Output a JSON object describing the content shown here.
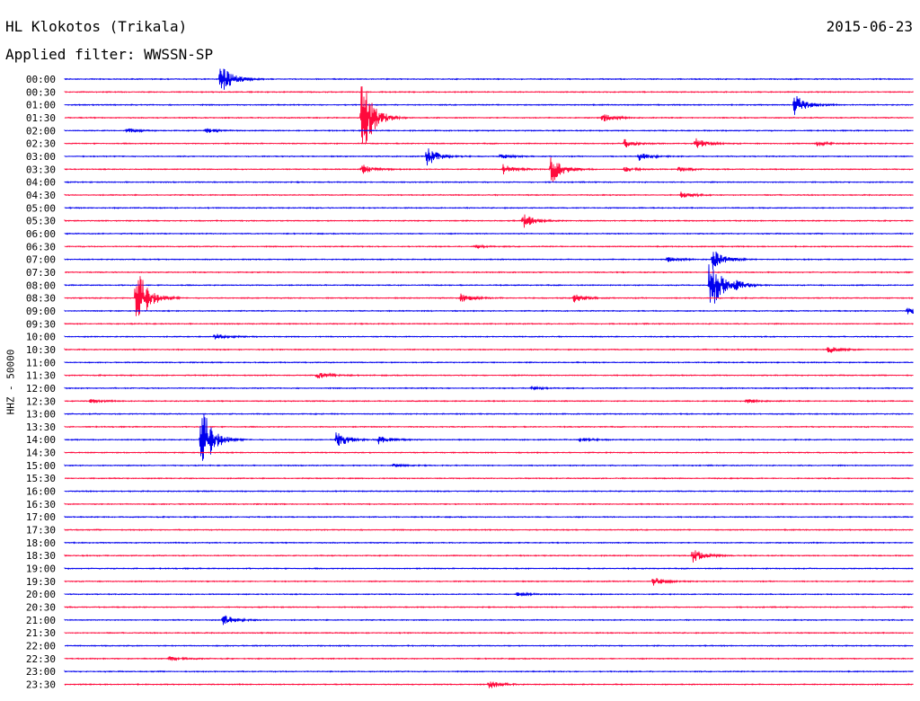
{
  "header": {
    "station": "HL Klokotos (Trikala)",
    "date": "2015-06-23",
    "filter": "Applied filter: WWSSN-SP",
    "channel_label": "HHZ - 50000"
  },
  "colors": {
    "odd_rows": "#0000ee",
    "even_rows": "#ff0a3c",
    "text": "#000000",
    "background": "#ffffff"
  },
  "chart_data": {
    "type": "helicorder",
    "row_minutes": 30,
    "x_range_minutes": [
      0,
      30
    ],
    "rows": [
      {
        "label": "00:00",
        "events": [
          {
            "t": 5.5,
            "a": 1.4
          }
        ]
      },
      {
        "label": "00:30",
        "events": []
      },
      {
        "label": "01:00",
        "events": [
          {
            "t": 25.8,
            "a": 0.9
          }
        ]
      },
      {
        "label": "01:30",
        "events": [
          {
            "t": 10.5,
            "a": 3.5
          },
          {
            "t": 19.0,
            "a": 0.35
          }
        ]
      },
      {
        "label": "02:00",
        "events": [
          {
            "t": 2.2,
            "a": 0.2
          },
          {
            "t": 5.0,
            "a": 0.2
          }
        ]
      },
      {
        "label": "02:30",
        "events": [
          {
            "t": 19.8,
            "a": 0.35
          },
          {
            "t": 22.3,
            "a": 0.45
          },
          {
            "t": 26.6,
            "a": 0.2
          }
        ]
      },
      {
        "label": "03:00",
        "events": [
          {
            "t": 12.8,
            "a": 0.8
          },
          {
            "t": 15.4,
            "a": 0.2
          },
          {
            "t": 20.3,
            "a": 0.35
          }
        ]
      },
      {
        "label": "03:30",
        "events": [
          {
            "t": 10.5,
            "a": 0.4
          },
          {
            "t": 15.5,
            "a": 0.4
          },
          {
            "t": 17.2,
            "a": 1.2
          },
          {
            "t": 19.8,
            "a": 0.2
          },
          {
            "t": 21.7,
            "a": 0.2
          }
        ]
      },
      {
        "label": "04:00",
        "events": []
      },
      {
        "label": "04:30",
        "events": [
          {
            "t": 21.8,
            "a": 0.25
          }
        ]
      },
      {
        "label": "05:00",
        "events": []
      },
      {
        "label": "05:30",
        "events": [
          {
            "t": 16.2,
            "a": 0.6
          }
        ]
      },
      {
        "label": "06:00",
        "events": []
      },
      {
        "label": "06:30",
        "events": [
          {
            "t": 14.5,
            "a": 0.15
          }
        ]
      },
      {
        "label": "07:00",
        "events": [
          {
            "t": 21.3,
            "a": 0.2
          },
          {
            "t": 22.9,
            "a": 0.9
          }
        ]
      },
      {
        "label": "07:30",
        "events": []
      },
      {
        "label": "08:00",
        "events": [
          {
            "t": 22.8,
            "a": 2.5
          },
          {
            "t": 23.7,
            "a": 0.35
          }
        ]
      },
      {
        "label": "08:30",
        "events": [
          {
            "t": 2.5,
            "a": 3.0
          },
          {
            "t": 14.0,
            "a": 0.35
          },
          {
            "t": 18.0,
            "a": 0.35
          }
        ]
      },
      {
        "label": "09:00",
        "events": [
          {
            "t": 29.8,
            "a": 0.35
          }
        ]
      },
      {
        "label": "09:30",
        "events": []
      },
      {
        "label": "10:00",
        "events": [
          {
            "t": 5.3,
            "a": 0.3
          }
        ]
      },
      {
        "label": "10:30",
        "events": [
          {
            "t": 27.0,
            "a": 0.3
          }
        ]
      },
      {
        "label": "11:00",
        "events": []
      },
      {
        "label": "11:30",
        "events": [
          {
            "t": 8.9,
            "a": 0.35
          }
        ]
      },
      {
        "label": "12:00",
        "events": [
          {
            "t": 16.5,
            "a": 0.15
          }
        ]
      },
      {
        "label": "12:30",
        "events": [
          {
            "t": 0.9,
            "a": 0.15
          },
          {
            "t": 24.1,
            "a": 0.15
          }
        ]
      },
      {
        "label": "13:00",
        "events": []
      },
      {
        "label": "13:30",
        "events": []
      },
      {
        "label": "14:00",
        "events": [
          {
            "t": 4.8,
            "a": 3.2
          },
          {
            "t": 9.6,
            "a": 0.7
          },
          {
            "t": 11.1,
            "a": 0.4
          },
          {
            "t": 18.2,
            "a": 0.2
          }
        ]
      },
      {
        "label": "14:30",
        "events": []
      },
      {
        "label": "15:00",
        "events": [
          {
            "t": 11.6,
            "a": 0.15
          }
        ]
      },
      {
        "label": "15:30",
        "events": []
      },
      {
        "label": "16:00",
        "events": []
      },
      {
        "label": "16:30",
        "events": []
      },
      {
        "label": "17:00",
        "events": []
      },
      {
        "label": "17:30",
        "events": []
      },
      {
        "label": "18:00",
        "events": []
      },
      {
        "label": "18:30",
        "events": [
          {
            "t": 22.2,
            "a": 0.6
          }
        ]
      },
      {
        "label": "19:00",
        "events": []
      },
      {
        "label": "19:30",
        "events": [
          {
            "t": 20.8,
            "a": 0.35
          }
        ]
      },
      {
        "label": "20:00",
        "events": [
          {
            "t": 16.0,
            "a": 0.15
          }
        ]
      },
      {
        "label": "20:30",
        "events": []
      },
      {
        "label": "21:00",
        "events": [
          {
            "t": 5.6,
            "a": 0.45
          }
        ]
      },
      {
        "label": "21:30",
        "events": []
      },
      {
        "label": "22:00",
        "events": []
      },
      {
        "label": "22:30",
        "events": [
          {
            "t": 3.7,
            "a": 0.2
          }
        ]
      },
      {
        "label": "23:00",
        "events": []
      },
      {
        "label": "23:30",
        "events": [
          {
            "t": 15.0,
            "a": 0.35
          }
        ]
      }
    ]
  }
}
